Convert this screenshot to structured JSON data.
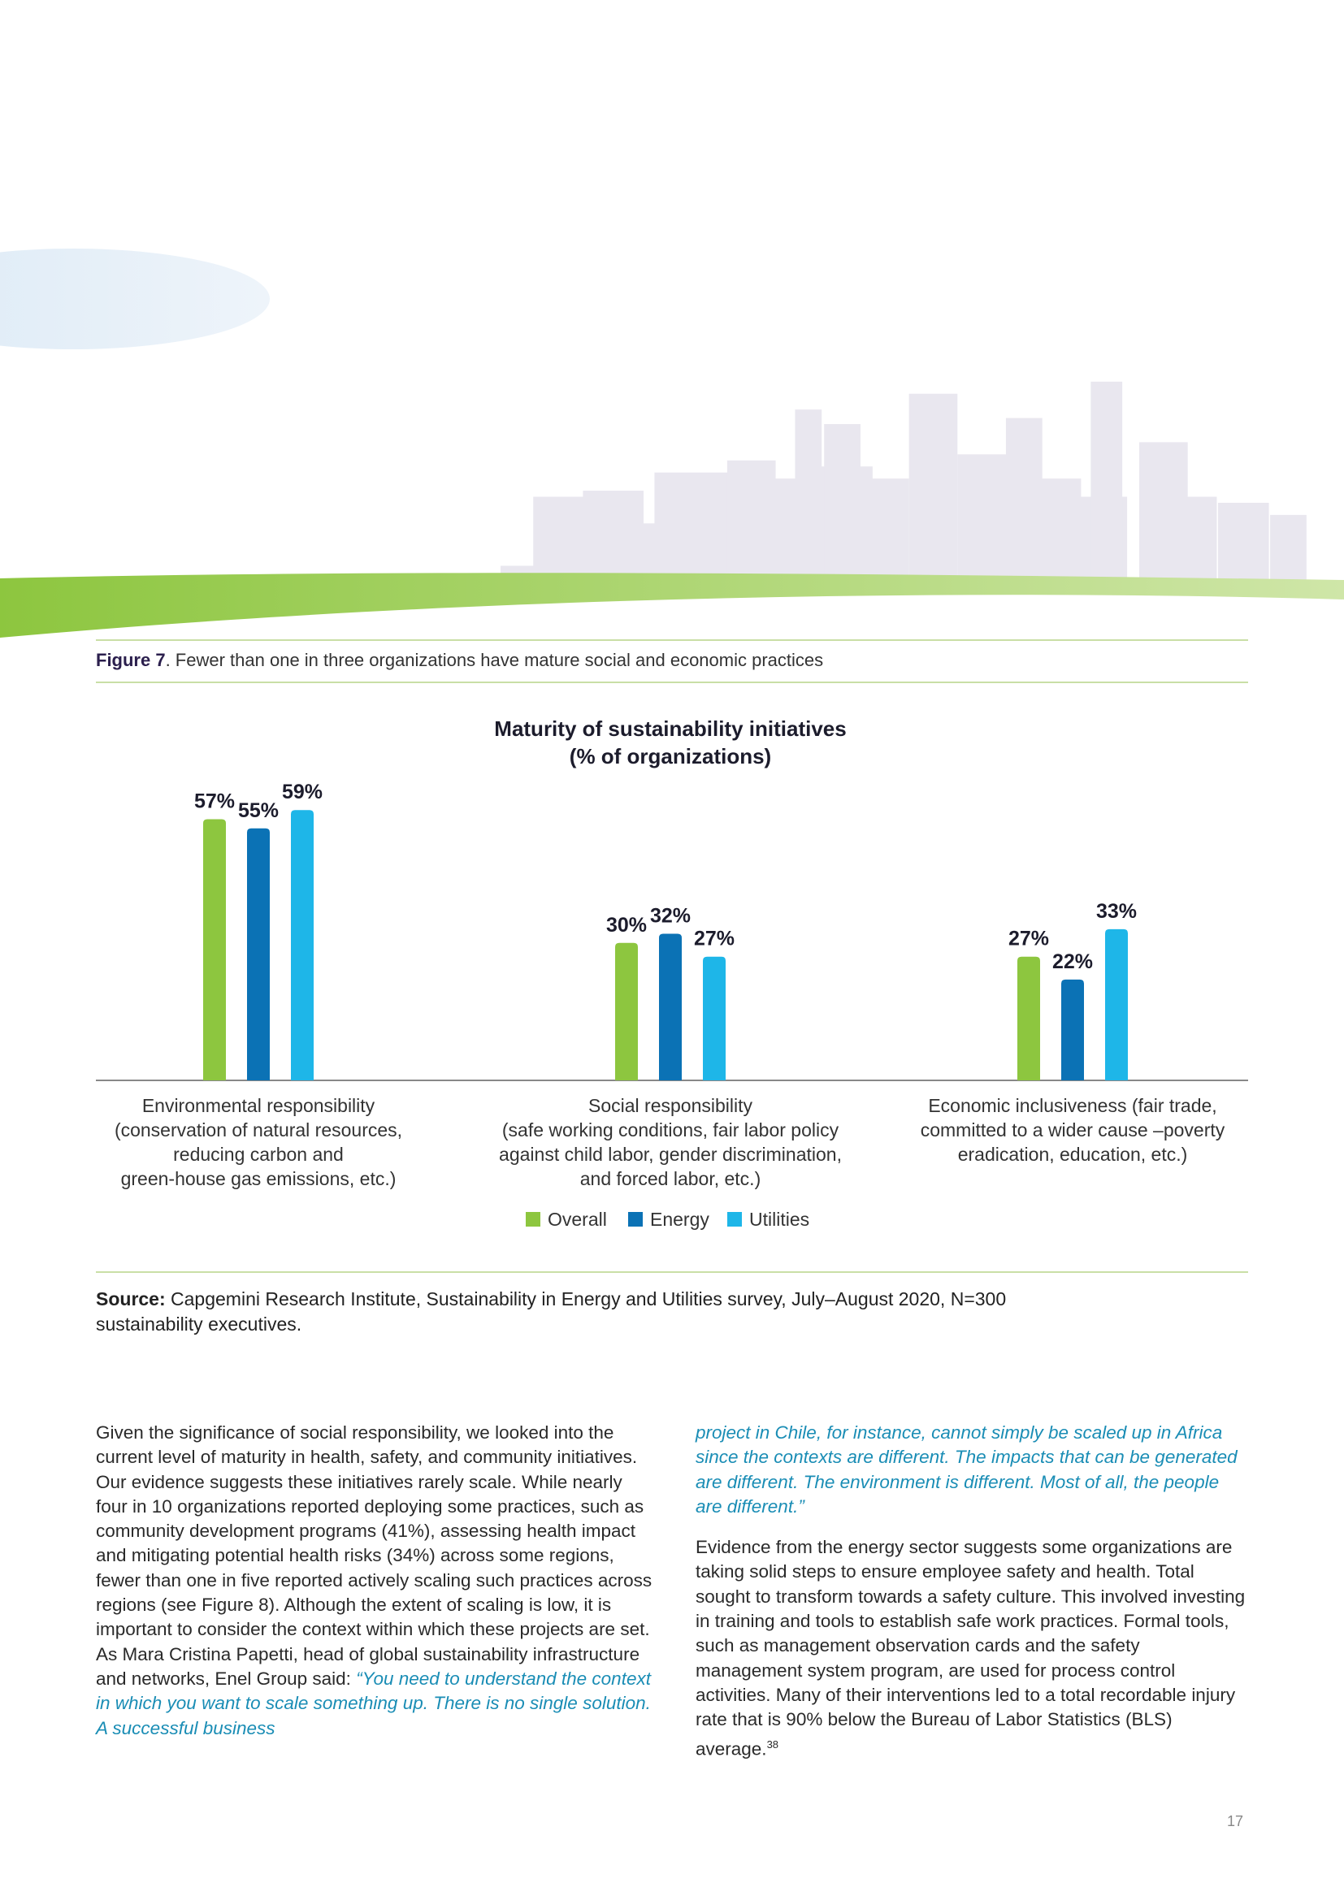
{
  "figure": {
    "label": "Figure 7",
    "caption": ". Fewer than one in three organizations have mature social and economic practices"
  },
  "chart_data": {
    "type": "bar",
    "title": "Maturity of sustainability initiatives\n(% of organizations)",
    "categories": [
      "Environmental responsibility\n(conservation of natural resources,\nreducing carbon and\ngreen-house gas emissions, etc.)",
      "Social responsibility\n(safe working conditions, fair labor policy\nagainst child labor, gender discrimination,\nand forced labor, etc.)",
      "Economic inclusiveness (fair trade,\ncommitted to a wider cause –poverty\neradication, education, etc.)"
    ],
    "series": [
      {
        "name": "Overall",
        "color": "#8dc63f",
        "values": [
          57,
          30,
          27
        ],
        "value_labels": [
          "57%",
          "30%",
          "27%"
        ]
      },
      {
        "name": "Energy",
        "color": "#0b72b5",
        "values": [
          55,
          32,
          22
        ],
        "value_labels": [
          "55%",
          "32%",
          "22%"
        ]
      },
      {
        "name": "Utilities",
        "color": "#1eb6e8",
        "values": [
          59,
          27,
          33
        ],
        "value_labels": [
          "59%",
          "27%",
          "33%"
        ]
      }
    ],
    "legend": "bottom"
  },
  "source": {
    "label": "Source:",
    "text": " Capgemini Research Institute, Sustainability in Energy and Utilities survey, July–August 2020, N=300 sustainability executives."
  },
  "body": {
    "left_text": "Given the significance of social responsibility, we looked into the current level of maturity in health, safety, and community initiatives. Our evidence suggests these initiatives rarely scale. While nearly four in 10 organizations reported deploying some practices, such as community development programs (41%), assessing health impact and mitigating potential health risks (34%) across some regions, fewer than one in five reported actively scaling such practices across regions (see Figure 8). Although the extent of scaling is low, it is important to consider the context within which these projects are set. As Mara Cristina Papetti, head of global sustainability infrastructure and networks, Enel Group said: ",
    "left_quote": "“You need to understand the context in which you want to scale something up. There is no single solution. A successful business",
    "right_quote": "project in Chile, for instance, cannot simply be scaled up in Africa since the contexts are different. The impacts that can be generated are different. The environment is different. Most of all, the people are different.”",
    "right_text": "Evidence from the energy sector suggests some organizations are taking solid steps to ensure employee safety and health. Total sought to transform towards a safety culture. This involved investing in training and tools to establish safe work practices. Formal tools, such as management observation cards and the safety management system program, are used for process control activities. Many of their interventions led to a total recordable injury rate that is 90% below the Bureau of Labor Statistics (BLS) average.",
    "footnote": "38"
  },
  "page_number": "17"
}
